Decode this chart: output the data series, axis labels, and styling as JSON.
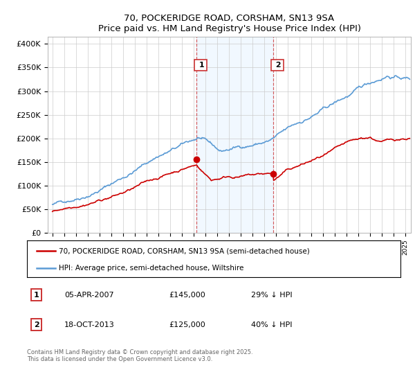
{
  "title": "70, POCKERIDGE ROAD, CORSHAM, SN13 9SA",
  "subtitle": "Price paid vs. HM Land Registry's House Price Index (HPI)",
  "ylabel_ticks": [
    "£0",
    "£50K",
    "£100K",
    "£150K",
    "£200K",
    "£250K",
    "£300K",
    "£350K",
    "£400K"
  ],
  "ytick_values": [
    0,
    50000,
    100000,
    150000,
    200000,
    250000,
    300000,
    350000,
    400000
  ],
  "ylim": [
    0,
    415000
  ],
  "xlim_start": 1994.6,
  "xlim_end": 2025.5,
  "hpi_color": "#5b9bd5",
  "price_color": "#cc0000",
  "shading_color": "#ddeeff",
  "marker1_date": 2007.27,
  "marker2_date": 2013.8,
  "marker1_price": 155000,
  "marker2_price": 125000,
  "legend_entry1": "70, POCKERIDGE ROAD, CORSHAM, SN13 9SA (semi-detached house)",
  "legend_entry2": "HPI: Average price, semi-detached house, Wiltshire",
  "footer": "Contains HM Land Registry data © Crown copyright and database right 2025.\nThis data is licensed under the Open Government Licence v3.0.",
  "background_color": "#ffffff",
  "grid_color": "#cccccc",
  "title_fontsize": 9.5,
  "tick_fontsize": 8,
  "label_fontsize": 8
}
